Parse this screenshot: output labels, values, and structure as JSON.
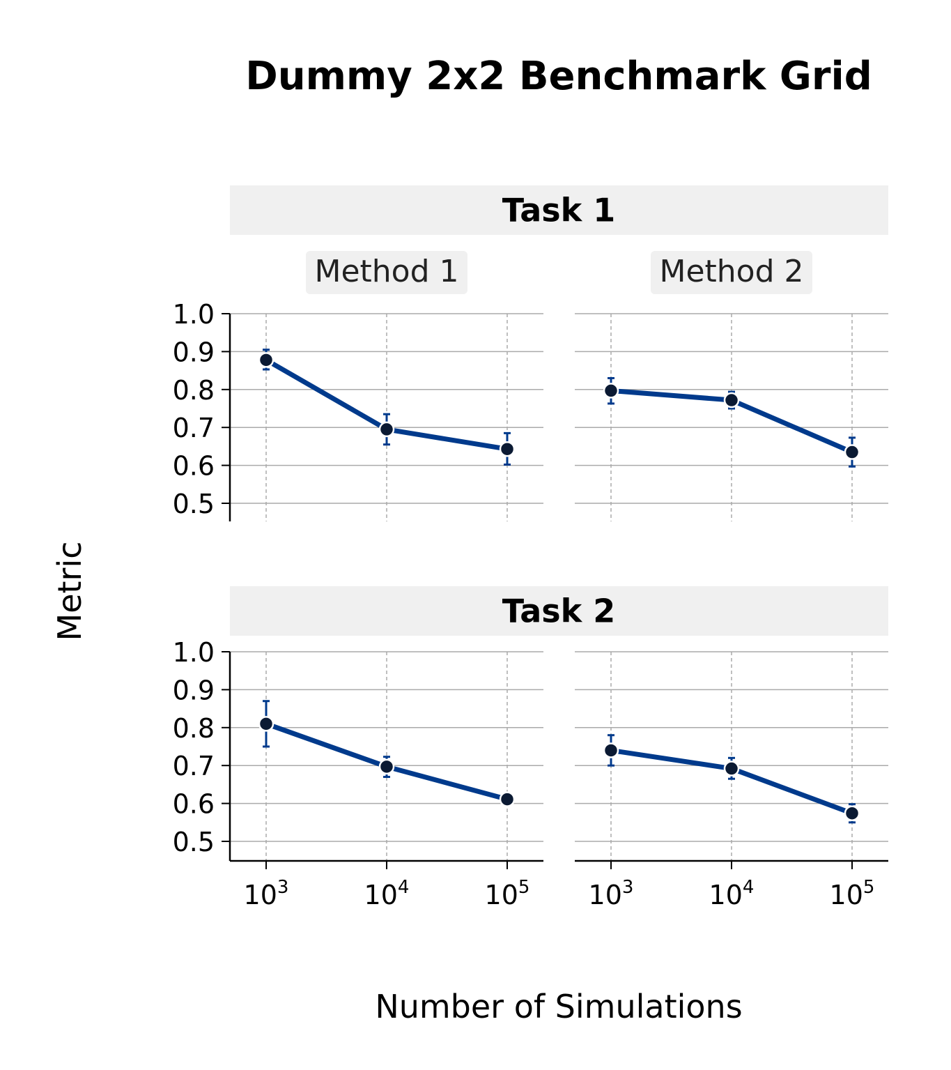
{
  "figure": {
    "title": "Dummy 2x2 Benchmark Grid",
    "xlabel": "Number of Simulations",
    "ylabel": "Metric"
  },
  "colors": {
    "line": "#003a8c",
    "marker": "#0b1a33",
    "grid": "#aaaaaa",
    "header_bg": "#f0f0f0",
    "axis": "#000000"
  },
  "chart_data": {
    "type": "line",
    "x": [
      1000,
      10000,
      100000
    ],
    "x_tick_labels": [
      {
        "base": "10",
        "exp": "3"
      },
      {
        "base": "10",
        "exp": "4"
      },
      {
        "base": "10",
        "exp": "5"
      }
    ],
    "xscale": "log",
    "ylim": [
      0.45,
      1.0
    ],
    "yticks": [
      "0.5",
      "0.6",
      "0.7",
      "0.8",
      "0.9",
      "1.0"
    ],
    "column_titles": [
      "Method 1",
      "Method 2"
    ],
    "rows": [
      {
        "task": "Task 1",
        "panels": [
          {
            "method": "Method 1",
            "values": [
              0.878,
              0.695,
              0.643
            ],
            "err_low": [
              0.853,
              0.655,
              0.602
            ],
            "err_high": [
              0.905,
              0.735,
              0.685
            ]
          },
          {
            "method": "Method 2",
            "values": [
              0.797,
              0.772,
              0.635
            ],
            "err_low": [
              0.763,
              0.75,
              0.597
            ],
            "err_high": [
              0.83,
              0.794,
              0.673
            ]
          }
        ]
      },
      {
        "task": "Task 2",
        "panels": [
          {
            "method": "Method 1",
            "values": [
              0.81,
              0.697,
              0.611
            ],
            "err_low": [
              0.75,
              0.67,
              0.606
            ],
            "err_high": [
              0.87,
              0.723,
              0.616
            ]
          },
          {
            "method": "Method 2",
            "values": [
              0.74,
              0.692,
              0.574
            ],
            "err_low": [
              0.7,
              0.665,
              0.55
            ],
            "err_high": [
              0.78,
              0.72,
              0.598
            ]
          }
        ]
      }
    ]
  }
}
